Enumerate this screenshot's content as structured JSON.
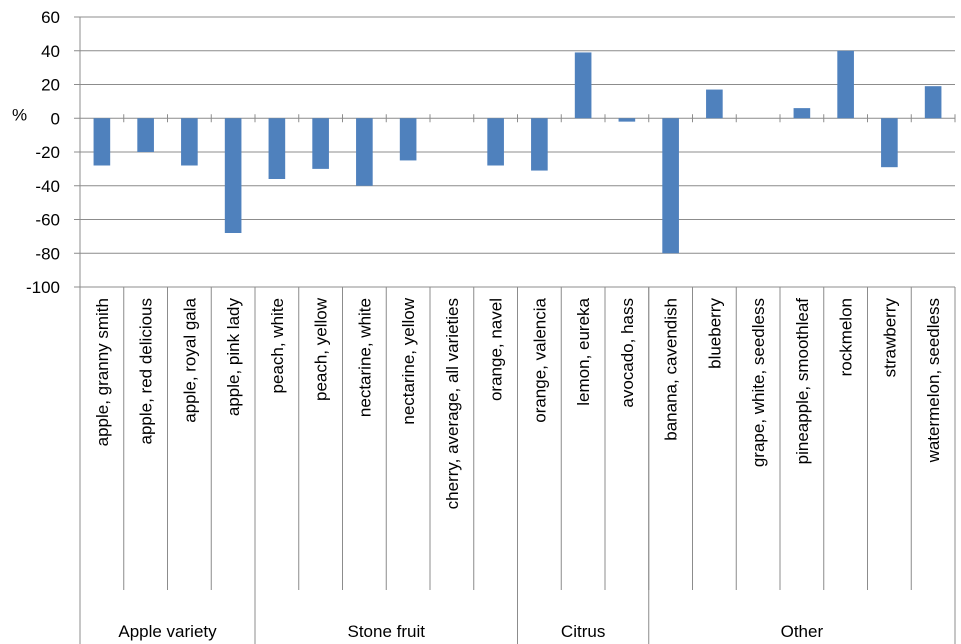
{
  "chart_data": {
    "type": "bar",
    "title": "",
    "xlabel": "",
    "ylabel": "%",
    "ylim": [
      -100,
      60
    ],
    "yticks": [
      60,
      40,
      20,
      0,
      -20,
      -40,
      -60,
      -80,
      -100
    ],
    "grid": true,
    "legend": "none",
    "bar_color": "#4F81BD",
    "categories": [
      "apple, granny smith",
      "apple, red delicious",
      "apple, royal gala",
      "apple, pink lady",
      "peach, white",
      "peach, yellow",
      "nectarine, white",
      "nectarine, yellow",
      "cherry, average,  all varieties",
      "orange, navel",
      "orange, valencia",
      "lemon, eureka",
      "avocado, hass",
      "banana, cavendish",
      "blueberry",
      "grape, white, seedless",
      "pineapple, smoothleaf",
      "rockmelon",
      "strawberry",
      "watermelon, seedless"
    ],
    "values": [
      -28,
      -20,
      -28,
      -68,
      -36,
      -30,
      -40,
      -25,
      0,
      -28,
      -31,
      39,
      -2,
      -80,
      17,
      0,
      6,
      40,
      -29,
      19
    ],
    "groups": [
      {
        "label": "Apple variety",
        "count": 4
      },
      {
        "label": "Stone fruit",
        "count": 6
      },
      {
        "label": "Citrus",
        "count": 3
      },
      {
        "label": "Other",
        "count": 7
      }
    ]
  }
}
